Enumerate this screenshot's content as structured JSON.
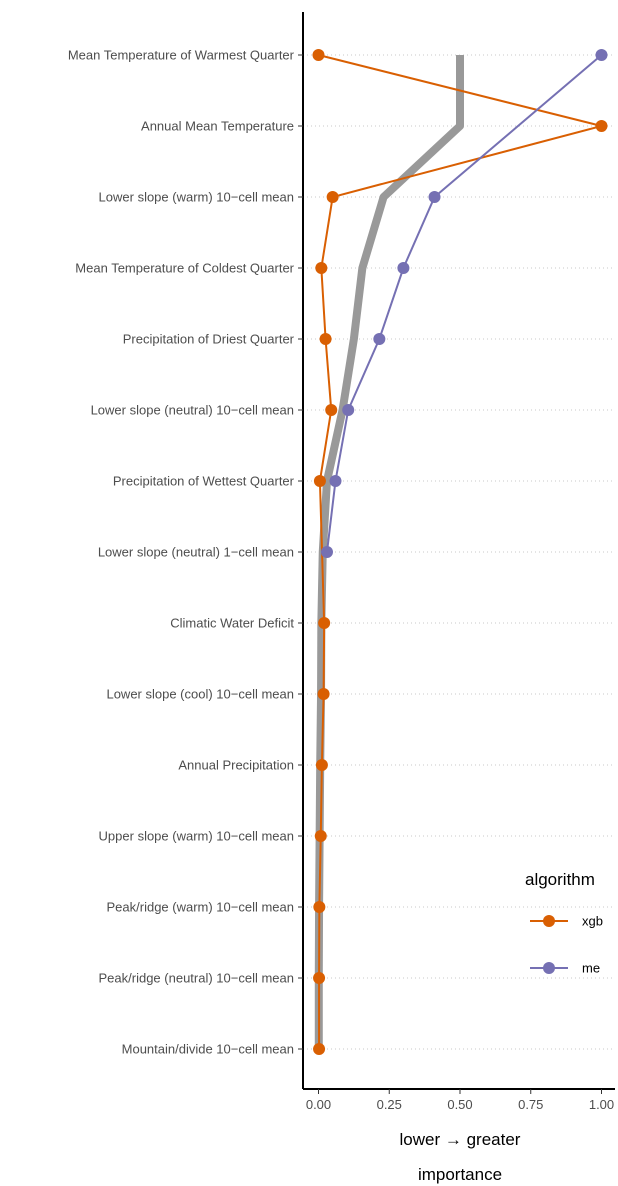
{
  "chart_data": {
    "type": "line",
    "orientation": "horizontal",
    "categories": [
      "Mean Temperature of Warmest Quarter",
      "Annual Mean Temperature",
      "Lower slope (warm) 10−cell mean",
      "Mean Temperature of Coldest Quarter",
      "Precipitation of Driest Quarter",
      "Lower slope (neutral) 10−cell mean",
      "Precipitation of Wettest Quarter",
      "Lower slope (neutral) 1−cell mean",
      "Climatic Water Deficit",
      "Lower slope (cool) 10−cell mean",
      "Annual Precipitation",
      "Upper slope (warm) 10−cell mean",
      "Peak/ridge (warm) 10−cell mean",
      "Peak/ridge (neutral) 10−cell mean",
      "Mountain/divide 10−cell mean"
    ],
    "series": [
      {
        "name": "xgb",
        "color": "#D95F02",
        "values": [
          0.0,
          1.0,
          0.05,
          0.01,
          0.025,
          0.045,
          0.005,
          null,
          0.02,
          0.018,
          0.012,
          0.008,
          0.003,
          0.002,
          0.002
        ]
      },
      {
        "name": "me",
        "color": "#7570B3",
        "values": [
          1.0,
          null,
          0.41,
          0.3,
          0.215,
          0.105,
          0.06,
          0.03,
          null,
          null,
          null,
          null,
          null,
          null,
          null
        ]
      }
    ],
    "mean_line": {
      "color": "#999999",
      "values": [
        0.5,
        0.5,
        0.23,
        0.155,
        0.125,
        0.085,
        0.03,
        0.015,
        0.01,
        0.009,
        0.006,
        0.004,
        0.002,
        0.001,
        0.001
      ]
    },
    "xlabel": "lower → greater",
    "xlabel2": "importance",
    "xticks": [
      "0.00",
      "0.25",
      "0.50",
      "0.75",
      "1.00"
    ],
    "xtick_values": [
      0,
      0.25,
      0.5,
      0.75,
      1.0
    ],
    "xlim": [
      -0.05,
      1.05
    ],
    "legend_title": "algorithm",
    "legend_position": "right",
    "grid": "dotted horizontal"
  }
}
